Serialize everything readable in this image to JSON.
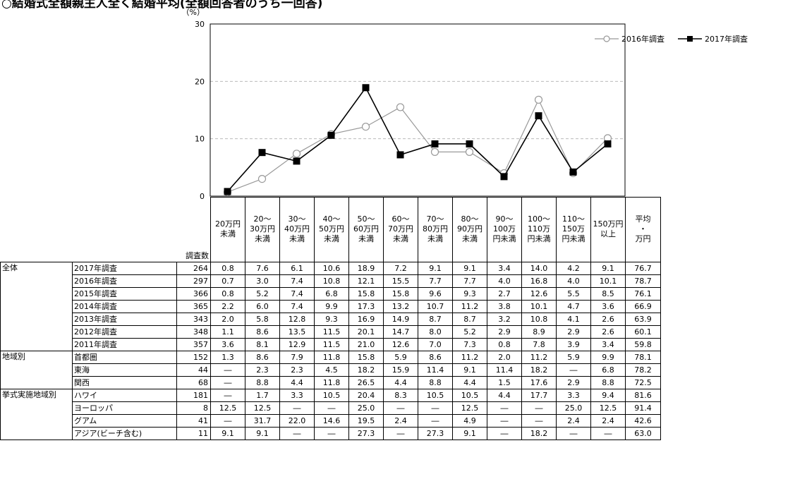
{
  "header": {
    "title": "○結婚式全額親主人全く結婚平均(全額回答者のうち一回答)"
  },
  "chart_data": {
    "type": "line",
    "ylabel": "（%）",
    "ylim": [
      0,
      30
    ],
    "yticks": [
      0,
      10,
      20,
      30
    ],
    "grid": "dashed horizontal",
    "legend_placement": "top-right",
    "categories": [
      "20万円未満",
      "20～30万円未満",
      "30～40万円未満",
      "40～50万円未満",
      "50～60万円未満",
      "60～70万円未満",
      "70～80万円未満",
      "80～90万円未満",
      "90～100万円未満",
      "100～110万円未満",
      "110～150万円未満",
      "150万円以上"
    ],
    "series": [
      {
        "name": "2016年調査",
        "marker": "open-circle",
        "color": "#999999",
        "values": [
          0.7,
          3.0,
          7.4,
          10.8,
          12.1,
          15.5,
          7.7,
          7.7,
          4.0,
          16.8,
          4.0,
          10.1
        ]
      },
      {
        "name": "2017年調査",
        "marker": "filled-square",
        "color": "#000000",
        "values": [
          0.8,
          7.6,
          6.1,
          10.6,
          18.9,
          7.2,
          9.1,
          9.1,
          3.4,
          14.0,
          4.2,
          9.1
        ]
      }
    ]
  },
  "table": {
    "count_header": "調査数",
    "columns": [
      [
        "20万円",
        "未満"
      ],
      [
        "20～",
        "30万円",
        "未満"
      ],
      [
        "30～",
        "40万円",
        "未満"
      ],
      [
        "40～",
        "50万円",
        "未満"
      ],
      [
        "50～",
        "60万円",
        "未満"
      ],
      [
        "60～",
        "70万円",
        "未満"
      ],
      [
        "70～",
        "80万円",
        "未満"
      ],
      [
        "80～",
        "90万円",
        "未満"
      ],
      [
        "90～",
        "100万",
        "円未満"
      ],
      [
        "100～",
        "110万",
        "円未満"
      ],
      [
        "110～",
        "150万",
        "円未満"
      ],
      [
        "150万円",
        "以上"
      ],
      [
        "平均",
        "・",
        "万円"
      ]
    ],
    "groups": [
      {
        "name": "全体",
        "rows": [
          {
            "label": "2017年調査",
            "n": "264",
            "values": [
              "0.8",
              "7.6",
              "6.1",
              "10.6",
              "18.9",
              "7.2",
              "9.1",
              "9.1",
              "3.4",
              "14.0",
              "4.2",
              "9.1",
              "76.7"
            ]
          },
          {
            "label": "2016年調査",
            "n": "297",
            "values": [
              "0.7",
              "3.0",
              "7.4",
              "10.8",
              "12.1",
              "15.5",
              "7.7",
              "7.7",
              "4.0",
              "16.8",
              "4.0",
              "10.1",
              "78.7"
            ]
          },
          {
            "label": "2015年調査",
            "n": "366",
            "values": [
              "0.8",
              "5.2",
              "7.4",
              "6.8",
              "15.8",
              "15.8",
              "9.6",
              "9.3",
              "2.7",
              "12.6",
              "5.5",
              "8.5",
              "76.1"
            ]
          },
          {
            "label": "2014年調査",
            "n": "365",
            "values": [
              "2.2",
              "6.0",
              "7.4",
              "9.9",
              "17.3",
              "13.2",
              "10.7",
              "11.2",
              "3.8",
              "10.1",
              "4.7",
              "3.6",
              "66.9"
            ]
          },
          {
            "label": "2013年調査",
            "n": "343",
            "values": [
              "2.0",
              "5.8",
              "12.8",
              "9.3",
              "16.9",
              "14.9",
              "8.7",
              "8.7",
              "3.2",
              "10.8",
              "4.1",
              "2.6",
              "63.9"
            ]
          },
          {
            "label": "2012年調査",
            "n": "348",
            "values": [
              "1.1",
              "8.6",
              "13.5",
              "11.5",
              "20.1",
              "14.7",
              "8.0",
              "5.2",
              "2.9",
              "8.9",
              "2.9",
              "2.6",
              "60.1"
            ]
          },
          {
            "label": "2011年調査",
            "n": "357",
            "values": [
              "3.6",
              "8.1",
              "12.9",
              "11.5",
              "21.0",
              "12.6",
              "7.0",
              "7.3",
              "0.8",
              "7.8",
              "3.9",
              "3.4",
              "59.8"
            ]
          }
        ]
      },
      {
        "name": "地域別",
        "rows": [
          {
            "label": "首都圏",
            "n": "152",
            "values": [
              "1.3",
              "8.6",
              "7.9",
              "11.8",
              "15.8",
              "5.9",
              "8.6",
              "11.2",
              "2.0",
              "11.2",
              "5.9",
              "9.9",
              "78.1"
            ]
          },
          {
            "label": "東海",
            "n": "44",
            "values": [
              "―",
              "2.3",
              "2.3",
              "4.5",
              "18.2",
              "15.9",
              "11.4",
              "9.1",
              "11.4",
              "18.2",
              "―",
              "6.8",
              "78.2"
            ]
          },
          {
            "label": "関西",
            "n": "68",
            "values": [
              "―",
              "8.8",
              "4.4",
              "11.8",
              "26.5",
              "4.4",
              "8.8",
              "4.4",
              "1.5",
              "17.6",
              "2.9",
              "8.8",
              "72.5"
            ]
          }
        ]
      },
      {
        "name": "挙式実施地域別",
        "rows": [
          {
            "label": "ハワイ",
            "n": "181",
            "values": [
              "―",
              "1.7",
              "3.3",
              "10.5",
              "20.4",
              "8.3",
              "10.5",
              "10.5",
              "4.4",
              "17.7",
              "3.3",
              "9.4",
              "81.6"
            ]
          },
          {
            "label": "ヨーロッパ",
            "n": "8",
            "values": [
              "12.5",
              "12.5",
              "―",
              "―",
              "25.0",
              "―",
              "―",
              "12.5",
              "―",
              "―",
              "25.0",
              "12.5",
              "91.4"
            ]
          },
          {
            "label": "グアム",
            "n": "41",
            "values": [
              "―",
              "31.7",
              "22.0",
              "14.6",
              "19.5",
              "2.4",
              "―",
              "4.9",
              "―",
              "―",
              "2.4",
              "2.4",
              "42.6"
            ]
          },
          {
            "label": "アジア(ビーチ含む)",
            "n": "11",
            "values": [
              "9.1",
              "9.1",
              "―",
              "―",
              "27.3",
              "―",
              "27.3",
              "9.1",
              "―",
              "18.2",
              "―",
              "―",
              "63.0"
            ]
          }
        ]
      }
    ]
  }
}
